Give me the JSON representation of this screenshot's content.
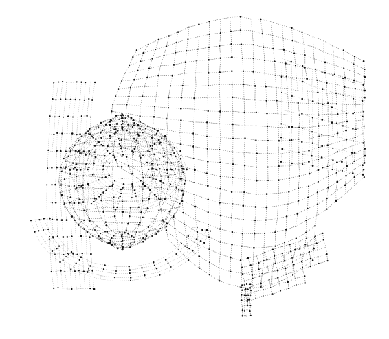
{
  "scene": {
    "background_color": "#ffffff",
    "line_color": "#4a4a4a",
    "node_color": "#111111"
  }
}
